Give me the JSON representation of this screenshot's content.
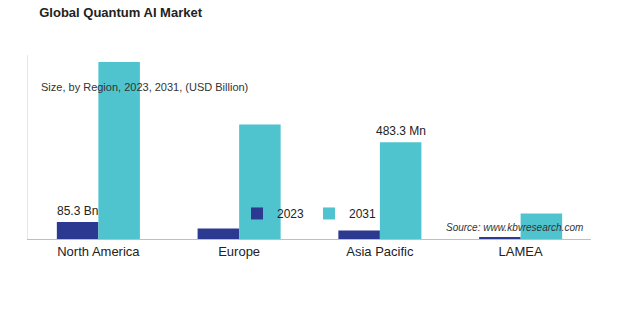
{
  "chart_data": {
    "type": "bar",
    "title": "Global Quantum AI Market",
    "subtitle": "Size, by Region, 2023, 2031, (USD Billion)",
    "source": "Source: www.kbvresearch.com",
    "categories": [
      "North America",
      "Europe",
      "Asia Pacific",
      "LAMEA"
    ],
    "series": [
      {
        "name": "2023",
        "color": "#2b3990",
        "values": [
          85.3,
          53,
          42,
          10
        ]
      },
      {
        "name": "2031",
        "color": "#4fc4cf",
        "values": [
          885,
          572,
          483.3,
          127
        ]
      }
    ],
    "annotations": [
      {
        "text": "85.3 Bn",
        "category": "North America",
        "series": "2023"
      },
      {
        "text": "483.3 Mn",
        "category": "Asia Pacific",
        "series": "2031"
      }
    ],
    "ylim": [
      0,
      920
    ],
    "grid": false,
    "tick_labels": "x",
    "legend": "bottom"
  }
}
